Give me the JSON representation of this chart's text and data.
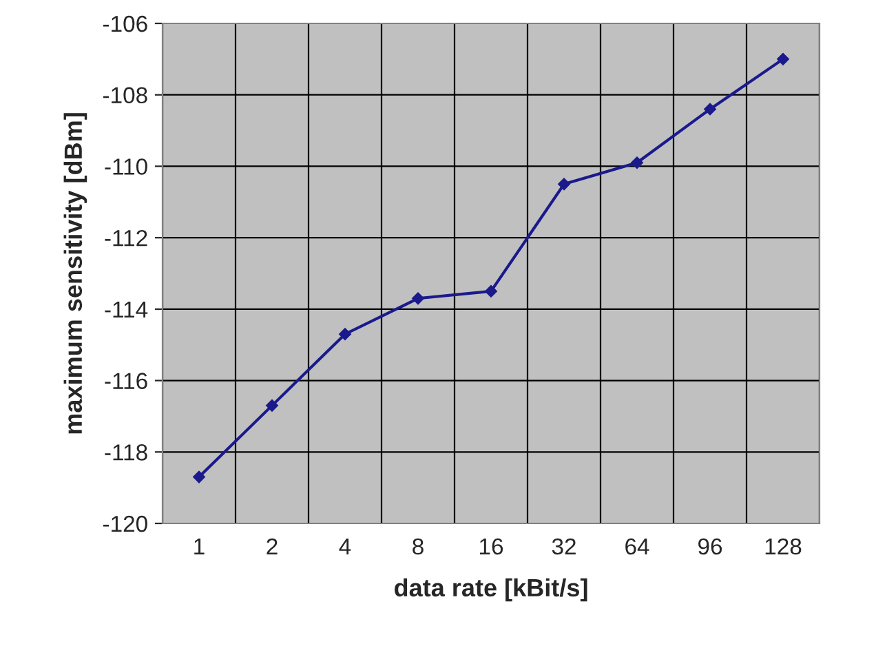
{
  "chart_data": {
    "type": "line",
    "xlabel": "data rate [kBit/s]",
    "ylabel": "maximum sensitivity [dBm]",
    "categories": [
      "1",
      "2",
      "4",
      "8",
      "16",
      "32",
      "64",
      "96",
      "128"
    ],
    "series": [
      {
        "color": "#1a1a8c",
        "values": [
          -118.7,
          -116.7,
          -114.7,
          -113.7,
          -113.5,
          -110.5,
          -109.9,
          -108.4,
          -107.0
        ]
      }
    ],
    "ylim": [
      -120,
      -106
    ],
    "yticks": [
      -120,
      -118,
      -116,
      -114,
      -112,
      -110,
      -108,
      -106
    ],
    "grid": true,
    "marker": "diamond",
    "line_style": "solid",
    "legend": false
  }
}
